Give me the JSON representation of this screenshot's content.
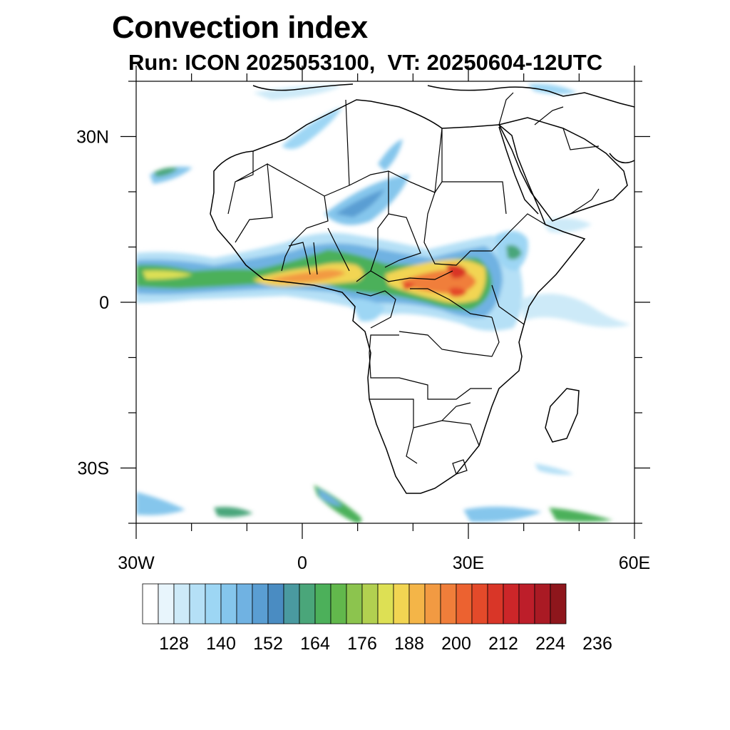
{
  "title": "Convection index",
  "subtitle": "Run: ICON 2025053100,  VT: 20250604-12UTC",
  "map": {
    "projection": "cylindrical equidistant",
    "lon_range": [
      -30,
      60
    ],
    "lat_range": [
      -40,
      40
    ],
    "x_ticks": [
      {
        "lon": -30,
        "label": "30W"
      },
      {
        "lon": 0,
        "label": "0"
      },
      {
        "lon": 30,
        "label": "30E"
      },
      {
        "lon": 60,
        "label": "60E"
      }
    ],
    "y_ticks": [
      {
        "lat": 30,
        "label": "30N"
      },
      {
        "lat": 0,
        "label": "0"
      },
      {
        "lat": -30,
        "label": "30S"
      }
    ],
    "minor_lon_step": 10,
    "minor_lat_step": 10
  },
  "colorbar": {
    "colors": [
      "#ffffff",
      "#e8f5fc",
      "#cdeaf8",
      "#b5e0f6",
      "#9dd6f4",
      "#85c6ec",
      "#70b2e2",
      "#5a9ed3",
      "#4a8cc2",
      "#4a9aa0",
      "#4aa67a",
      "#4cb05a",
      "#62b84c",
      "#8cc44e",
      "#b2d050",
      "#dde054",
      "#f2d552",
      "#f4b548",
      "#f29a42",
      "#f07e3a",
      "#ec6230",
      "#e44a2a",
      "#d93628",
      "#cc2629",
      "#bd1e2a",
      "#aa1a24",
      "#8e161c"
    ],
    "labels": [
      {
        "after_box": 2,
        "text": "128"
      },
      {
        "after_box": 5,
        "text": "140"
      },
      {
        "after_box": 8,
        "text": "152"
      },
      {
        "after_box": 11,
        "text": "164"
      },
      {
        "after_box": 14,
        "text": "176"
      },
      {
        "after_box": 17,
        "text": "188"
      },
      {
        "after_box": 20,
        "text": "200"
      },
      {
        "after_box": 23,
        "text": "212"
      },
      {
        "after_box": 26,
        "text": "224"
      },
      {
        "after_box": 29,
        "text": "236"
      }
    ]
  }
}
